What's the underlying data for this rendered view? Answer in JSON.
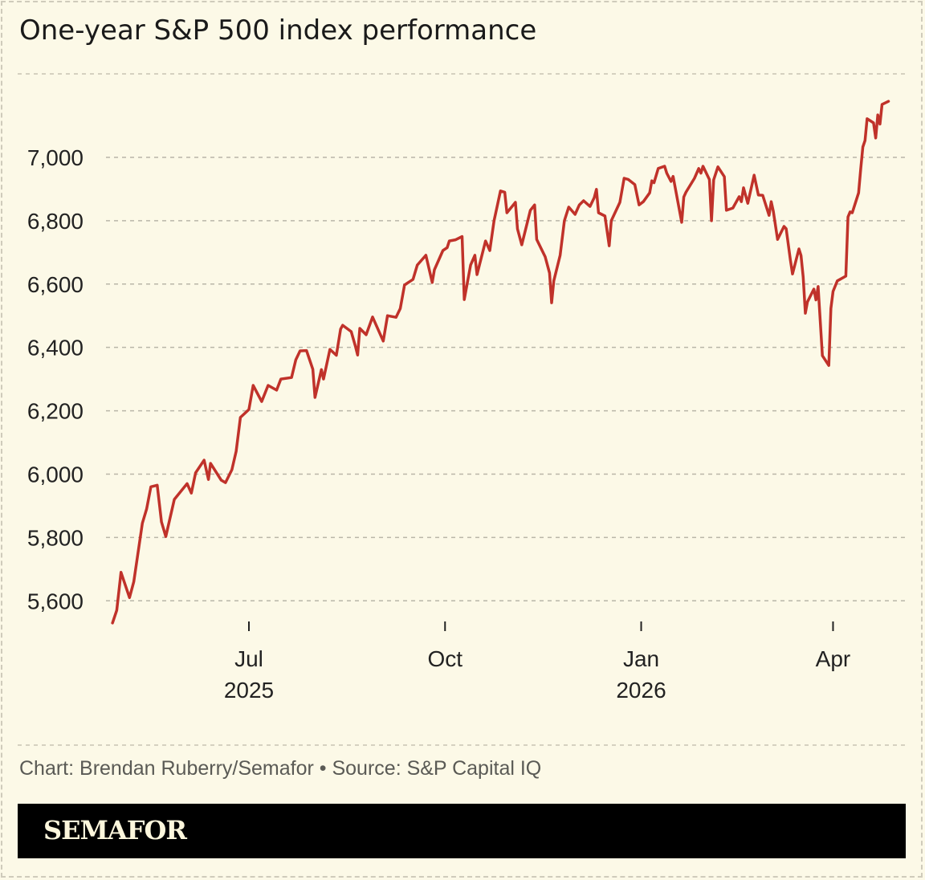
{
  "chart_data": {
    "type": "line",
    "title": "One-year S&P 500 index performance",
    "xlabel": "",
    "ylabel": "",
    "ylim": [
      5520,
      7200
    ],
    "yticks": [
      5600,
      5800,
      6000,
      6200,
      6400,
      6600,
      6800,
      7000
    ],
    "ytick_labels": [
      "5,600",
      "5,800",
      "6,000",
      "6,200",
      "6,400",
      "6,600",
      "6,800",
      "7,000"
    ],
    "xticks": [
      {
        "date": "2025-07-01",
        "label": "Jul",
        "sublabel": "2025"
      },
      {
        "date": "2025-10-01",
        "label": "Oct",
        "sublabel": ""
      },
      {
        "date": "2026-01-01",
        "label": "Jan",
        "sublabel": "2026"
      },
      {
        "date": "2026-04-01",
        "label": "Apr",
        "sublabel": ""
      }
    ],
    "grid": "horizontal dashed",
    "line_color": "#c0322a",
    "series": [
      {
        "x": [
          "2025-04-28",
          "2025-04-30",
          "2025-05-02",
          "2025-05-06",
          "2025-05-08",
          "2025-05-12",
          "2025-05-14",
          "2025-05-16",
          "2025-05-19",
          "2025-05-21",
          "2025-05-23",
          "2025-05-27",
          "2025-06-02",
          "2025-06-04",
          "2025-06-06",
          "2025-06-10",
          "2025-06-12",
          "2025-06-13",
          "2025-06-18",
          "2025-06-20",
          "2025-06-23",
          "2025-06-25",
          "2025-06-27",
          "2025-07-01",
          "2025-07-03",
          "2025-07-07",
          "2025-07-10",
          "2025-07-14",
          "2025-07-16",
          "2025-07-21",
          "2025-07-23",
          "2025-07-25",
          "2025-07-28",
          "2025-07-31",
          "2025-08-01",
          "2025-08-04",
          "2025-08-05",
          "2025-08-08",
          "2025-08-11",
          "2025-08-13",
          "2025-08-14",
          "2025-08-18",
          "2025-08-20",
          "2025-08-21",
          "2025-08-22",
          "2025-08-25",
          "2025-08-28",
          "2025-09-02",
          "2025-09-04",
          "2025-09-08",
          "2025-09-10",
          "2025-09-12",
          "2025-09-16",
          "2025-09-18",
          "2025-09-22",
          "2025-09-25",
          "2025-09-26",
          "2025-09-30",
          "2025-10-02",
          "2025-10-03",
          "2025-10-06",
          "2025-10-09",
          "2025-10-10",
          "2025-10-13",
          "2025-10-15",
          "2025-10-16",
          "2025-10-20",
          "2025-10-22",
          "2025-10-24",
          "2025-10-27",
          "2025-10-29",
          "2025-10-30",
          "2025-11-03",
          "2025-11-04",
          "2025-11-06",
          "2025-11-10",
          "2025-11-12",
          "2025-11-13",
          "2025-11-17",
          "2025-11-19",
          "2025-11-20",
          "2025-11-21",
          "2025-11-24",
          "2025-11-26",
          "2025-11-28",
          "2025-12-01",
          "2025-12-03",
          "2025-12-05",
          "2025-12-08",
          "2025-12-10",
          "2025-12-11",
          "2025-12-12",
          "2025-12-15",
          "2025-12-17",
          "2025-12-18",
          "2025-12-22",
          "2025-12-24",
          "2025-12-26",
          "2025-12-29",
          "2025-12-31",
          "2026-01-02",
          "2026-01-05",
          "2026-01-06",
          "2026-01-07",
          "2026-01-09",
          "2026-01-12",
          "2026-01-13",
          "2026-01-15",
          "2026-01-16",
          "2026-01-20",
          "2026-01-21",
          "2026-01-22",
          "2026-01-26",
          "2026-01-28",
          "2026-01-29",
          "2026-01-30",
          "2026-02-02",
          "2026-02-03",
          "2026-02-04",
          "2026-02-06",
          "2026-02-09",
          "2026-02-10",
          "2026-02-13",
          "2026-02-16",
          "2026-02-17",
          "2026-02-18",
          "2026-02-19",
          "2026-02-20",
          "2026-02-23",
          "2026-02-25",
          "2026-02-27",
          "2026-03-02",
          "2026-03-03",
          "2026-03-04",
          "2026-03-06",
          "2026-03-09",
          "2026-03-10",
          "2026-03-12",
          "2026-03-13",
          "2026-03-16",
          "2026-03-17",
          "2026-03-18",
          "2026-03-19",
          "2026-03-20",
          "2026-03-23",
          "2026-03-24",
          "2026-03-25",
          "2026-03-27",
          "2026-03-30",
          "2026-03-31",
          "2026-04-01",
          "2026-04-03",
          "2026-04-07",
          "2026-04-08",
          "2026-04-09",
          "2026-04-10",
          "2026-04-13",
          "2026-04-14",
          "2026-04-15",
          "2026-04-16",
          "2026-04-17",
          "2026-04-20",
          "2026-04-21",
          "2026-04-22",
          "2026-04-23",
          "2026-04-24",
          "2026-04-27"
        ],
        "y": [
          5530,
          5570,
          5690,
          5610,
          5660,
          5845,
          5890,
          5960,
          5965,
          5849,
          5803,
          5920,
          5970,
          5940,
          6004,
          6044,
          5983,
          6034,
          5981,
          5973,
          6014,
          6072,
          6179,
          6204,
          6280,
          6229,
          6280,
          6265,
          6300,
          6305,
          6361,
          6389,
          6390,
          6331,
          6242,
          6330,
          6300,
          6394,
          6375,
          6458,
          6470,
          6450,
          6402,
          6376,
          6460,
          6440,
          6496,
          6420,
          6500,
          6495,
          6523,
          6597,
          6615,
          6660,
          6691,
          6605,
          6645,
          6706,
          6715,
          6736,
          6740,
          6750,
          6551,
          6660,
          6691,
          6630,
          6736,
          6706,
          6800,
          6894,
          6890,
          6825,
          6858,
          6774,
          6724,
          6833,
          6850,
          6741,
          6686,
          6635,
          6541,
          6610,
          6691,
          6800,
          6843,
          6820,
          6850,
          6863,
          6845,
          6873,
          6899,
          6825,
          6815,
          6721,
          6800,
          6858,
          6934,
          6930,
          6914,
          6850,
          6860,
          6888,
          6926,
          6920,
          6965,
          6972,
          6950,
          6924,
          6940,
          6795,
          6875,
          6890,
          6934,
          6965,
          6950,
          6972,
          6930,
          6800,
          6929,
          6970,
          6939,
          6833,
          6840,
          6876,
          6860,
          6904,
          6880,
          6855,
          6944,
          6881,
          6880,
          6817,
          6860,
          6830,
          6741,
          6782,
          6775,
          6675,
          6632,
          6711,
          6690,
          6622,
          6508,
          6544,
          6584,
          6550,
          6592,
          6374,
          6343,
          6523,
          6577,
          6610,
          6625,
          6812,
          6828,
          6825,
          6888,
          6965,
          7033,
          7053,
          7122,
          7109,
          7061,
          7134,
          7105,
          7167,
          7177
        ]
      }
    ]
  },
  "footer": {
    "credit": "Chart: Brendan Ruberry/Semafor • Source: S&P Capital IQ",
    "logo": "SEMAFOR"
  }
}
